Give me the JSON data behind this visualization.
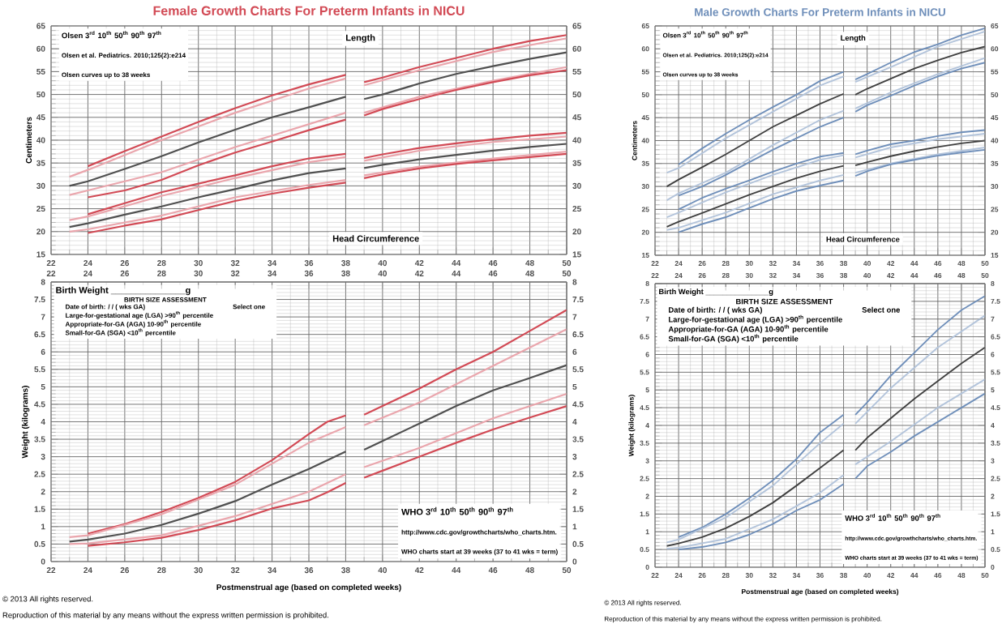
{
  "chart_data": [
    {
      "type": "line",
      "title": "Female Growth Charts For Preterm Infants in NICU",
      "ylabel": "Centimeters",
      "annotations": [
        "Olsen 3$^{rd}$ 10$^{th}$ 50$^{th}$ 90$^{th}$ 97$^{th}$",
        "Olsen et al. Pediatrics. 2010;125(2):e214",
        "Olsen curves up to 38 weeks",
        "Length",
        "Head Circumference"
      ],
      "xlim": [
        22,
        50
      ],
      "xticks": [
        22,
        24,
        26,
        28,
        30,
        32,
        34,
        36,
        38,
        40,
        42,
        44,
        46,
        48,
        50
      ],
      "ylim": [
        15,
        65
      ],
      "yticks": [
        15,
        20,
        25,
        30,
        35,
        40,
        45,
        50,
        55,
        60,
        65
      ],
      "y2lim": [
        15,
        65
      ],
      "y2ticks": [
        15,
        20,
        25,
        30,
        35,
        40,
        45,
        50,
        55,
        60,
        65
      ],
      "grid": true,
      "series": [
        {
          "color": "#d24a55",
          "x": [
            24,
            26,
            28,
            30,
            32,
            34,
            36,
            38,
            38.5,
            39,
            40,
            42,
            44,
            46,
            48,
            50
          ],
          "values": [
            34.3,
            37.6,
            40.8,
            44,
            47,
            49.8,
            52.2,
            54.3,
            null,
            52.7,
            53.7,
            56,
            58,
            60,
            61.7,
            63
          ]
        },
        {
          "color": "#eaa6ad",
          "x": [
            23,
            24,
            28,
            32,
            36,
            38,
            38.5,
            39,
            42,
            46,
            50
          ],
          "values": [
            32,
            33.5,
            40,
            46,
            51.3,
            53.5,
            null,
            52,
            55.3,
            59.3,
            62.3
          ]
        },
        {
          "color": "#505050",
          "x": [
            23,
            24,
            26,
            28,
            30,
            32,
            34,
            36,
            38,
            38.5,
            39,
            40,
            42,
            44,
            46,
            48,
            50
          ],
          "values": [
            30,
            31,
            33.7,
            36.5,
            39.5,
            42.3,
            45,
            47.2,
            49.5,
            null,
            49,
            50,
            52.4,
            54.5,
            56.2,
            57.8,
            59.2
          ]
        },
        {
          "color": "#eaa6ad",
          "x": [
            23,
            24,
            28,
            32,
            36,
            38,
            38.5,
            39,
            42,
            46,
            50
          ],
          "values": [
            28,
            29,
            33,
            38.5,
            43.5,
            46,
            null,
            46,
            49.5,
            53,
            56
          ]
        },
        {
          "color": "#d24a55",
          "x": [
            24,
            26,
            28,
            30,
            32,
            34,
            36,
            38,
            38.5,
            39,
            40,
            42,
            44,
            46,
            48,
            50
          ],
          "values": [
            27.5,
            29,
            31.3,
            34.5,
            37.3,
            39.7,
            42.2,
            44.5,
            null,
            45.4,
            46.8,
            49,
            51,
            52.7,
            54.2,
            55.3
          ]
        },
        {
          "color": "#d24a55",
          "x": [
            24,
            26,
            28,
            30,
            32,
            34,
            36,
            38,
            38.5,
            39,
            40,
            42,
            44,
            46,
            48,
            50
          ],
          "values": [
            23.8,
            26.2,
            28.6,
            30.5,
            32.3,
            34.3,
            36,
            37,
            null,
            36.1,
            36.9,
            38.3,
            39.3,
            40.2,
            41,
            41.6
          ]
        },
        {
          "color": "#eaa6ad",
          "x": [
            23,
            24,
            28,
            32,
            36,
            38,
            38.5,
            39,
            42,
            46,
            50
          ],
          "values": [
            22.5,
            23.3,
            27.8,
            31.7,
            35.2,
            36.3,
            null,
            35.5,
            37.7,
            39.6,
            40.8
          ]
        },
        {
          "color": "#505050",
          "x": [
            23,
            24,
            26,
            28,
            30,
            32,
            34,
            36,
            38,
            38.5,
            39,
            40,
            42,
            44,
            46,
            48,
            50
          ],
          "values": [
            21,
            21.8,
            23.7,
            25.5,
            27.5,
            29.3,
            31.2,
            32.8,
            33.8,
            null,
            33.9,
            34.6,
            35.8,
            36.8,
            37.7,
            38.5,
            39.2
          ]
        },
        {
          "color": "#eaa6ad",
          "x": [
            23,
            24,
            28,
            32,
            36,
            38,
            38.5,
            39,
            42,
            46,
            50
          ],
          "values": [
            20,
            20.5,
            23.5,
            27.5,
            30.2,
            31.3,
            null,
            32.3,
            34.2,
            36,
            37.5
          ]
        },
        {
          "color": "#d24a55",
          "x": [
            24,
            26,
            28,
            30,
            32,
            34,
            36,
            38,
            38.5,
            39,
            40,
            42,
            44,
            46,
            48,
            50
          ],
          "values": [
            19.7,
            21.3,
            22.7,
            24.7,
            26.7,
            28.3,
            29.6,
            30.7,
            null,
            31.7,
            32.5,
            33.8,
            34.8,
            35.6,
            36.3,
            37
          ]
        }
      ]
    },
    {
      "type": "line",
      "xlabel": "Postmenstrual age (based on completed weeks)",
      "ylabel": "Weight (kilograms)",
      "annotations": [
        "Birth Weight _______________g",
        "BIRTH SIZE ASSESSMENT",
        "Date of birth: / / ( wks GA)",
        "Select one",
        "Large-for-gestational age (LGA) >90$^{th}$ percentile",
        "Appropriate-for-GA (AGA) 10-90$^{th}$ percentile",
        "Small-for-GA (SGA) <10$^{th}$ percentile",
        "WHO 3$^{rd}$ 10$^{th}$ 50$^{th}$ 90$^{th}$ 97$^{th}$",
        "http://www.cdc.gov/growthcharts/who_charts.htm.",
        "WHO charts start at 39 weeks (37 to 41 wks = term)",
        "© 2013 All rights reserved.",
        "Reproduction of this material by any means without the express written permission is prohibited."
      ],
      "xlim": [
        22,
        50
      ],
      "xticks": [
        22,
        24,
        26,
        28,
        30,
        32,
        34,
        36,
        38,
        40,
        42,
        44,
        46,
        48,
        50
      ],
      "x2lim": [
        22,
        50
      ],
      "x2ticks": [
        22,
        24,
        26,
        28,
        30,
        32,
        34,
        36,
        38,
        40,
        42,
        44,
        46,
        48,
        50
      ],
      "ylim": [
        0,
        8
      ],
      "yticks": [
        0,
        0.5,
        1,
        1.5,
        2,
        2.5,
        3,
        3.5,
        4,
        4.5,
        5,
        5.5,
        6,
        6.5,
        7,
        7.5,
        8
      ],
      "y2lim": [
        0,
        8
      ],
      "y2ticks": [
        0,
        0.5,
        1,
        1.5,
        2,
        2.5,
        3,
        3.5,
        4,
        4.5,
        5,
        5.5,
        6,
        6.5,
        7,
        7.5,
        8
      ],
      "grid": true,
      "series": [
        {
          "color": "#d24a55",
          "x": [
            24,
            26,
            28,
            30,
            32,
            34,
            36,
            37,
            38,
            38.5,
            39,
            40,
            42,
            44,
            46,
            48,
            50
          ],
          "values": [
            0.8,
            1.07,
            1.42,
            1.82,
            2.28,
            2.9,
            3.65,
            4,
            4.18,
            null,
            4.2,
            4.45,
            4.95,
            5.5,
            6,
            6.6,
            7.2
          ]
        },
        {
          "color": "#eaa6ad",
          "x": [
            23,
            24,
            28,
            32,
            36,
            38,
            38.5,
            39,
            42,
            46,
            50
          ],
          "values": [
            0.7,
            0.75,
            1.35,
            2.2,
            3.4,
            3.85,
            null,
            3.9,
            4.55,
            5.6,
            6.65
          ]
        },
        {
          "color": "#505050",
          "x": [
            23,
            24,
            26,
            28,
            30,
            32,
            34,
            36,
            38,
            38.5,
            39,
            40,
            42,
            44,
            46,
            48,
            50
          ],
          "values": [
            0.57,
            0.63,
            0.8,
            1.05,
            1.37,
            1.73,
            2.2,
            2.65,
            3.15,
            null,
            3.2,
            3.45,
            3.95,
            4.45,
            4.9,
            5.25,
            5.62
          ]
        },
        {
          "color": "#eaa6ad",
          "x": [
            23,
            24,
            28,
            32,
            36,
            38,
            38.5,
            39,
            42,
            46,
            50
          ],
          "values": [
            0.5,
            0.52,
            0.75,
            1.3,
            2,
            2.5,
            null,
            2.7,
            3.25,
            4.1,
            4.8
          ]
        },
        {
          "color": "#d24a55",
          "x": [
            24,
            26,
            28,
            30,
            32,
            34,
            36,
            37,
            38,
            38.5,
            39,
            40,
            42,
            44,
            46,
            48,
            50
          ],
          "values": [
            0.45,
            0.55,
            0.68,
            0.9,
            1.18,
            1.52,
            1.75,
            1.98,
            2.25,
            null,
            2.4,
            2.6,
            3,
            3.4,
            3.78,
            4.12,
            4.45
          ]
        }
      ]
    },
    {
      "type": "line",
      "title": "Male Growth Charts For Preterm Infants in NICU",
      "ylabel": "Centimeters",
      "annotations": [
        "Olsen 3$^{rd}$ 10$^{th}$ 50$^{th}$ 90$^{th}$ 97$^{th}$",
        "Olsen et al. Pediatrics. 2010;125(2):e214",
        "Olsen curves up to 38 weeks",
        "Length",
        "Head Circumference"
      ],
      "xlim": [
        22,
        50
      ],
      "xticks": [
        22,
        24,
        26,
        28,
        30,
        32,
        34,
        36,
        38,
        40,
        42,
        44,
        46,
        48,
        50
      ],
      "ylim": [
        15,
        65
      ],
      "yticks": [
        15,
        20,
        25,
        30,
        35,
        40,
        45,
        50,
        55,
        60,
        65
      ],
      "y2lim": [
        15,
        65
      ],
      "y2ticks": [
        15,
        20,
        25,
        30,
        35,
        40,
        45,
        50,
        55,
        60,
        65
      ],
      "grid": true,
      "series": [
        {
          "color": "#6f8fba",
          "x": [
            24,
            26,
            28,
            30,
            32,
            34,
            36,
            38,
            38.5,
            39,
            40,
            42,
            44,
            46,
            48,
            50
          ],
          "values": [
            34.8,
            38.3,
            41.5,
            44.5,
            47.3,
            50,
            53,
            55,
            null,
            53.3,
            54.5,
            57,
            59.3,
            61,
            63,
            64.5
          ]
        },
        {
          "color": "#b3c4db",
          "x": [
            23,
            24,
            28,
            32,
            36,
            38,
            38.5,
            39,
            42,
            46,
            50
          ],
          "values": [
            33,
            34,
            40.5,
            46.3,
            52,
            54,
            null,
            52.8,
            56,
            60.5,
            63.8
          ]
        },
        {
          "color": "#404040",
          "x": [
            23,
            24,
            26,
            28,
            30,
            32,
            34,
            36,
            38,
            38.5,
            39,
            40,
            42,
            44,
            46,
            48,
            50
          ],
          "values": [
            30,
            31.5,
            34.2,
            37,
            40,
            43,
            45.5,
            48,
            50.2,
            null,
            50,
            51.3,
            53.5,
            55.7,
            57.5,
            59.2,
            60.5
          ]
        },
        {
          "color": "#b3c4db",
          "x": [
            23,
            24,
            28,
            32,
            36,
            38,
            38.5,
            39,
            42,
            46,
            50
          ],
          "values": [
            27,
            28.5,
            33,
            39,
            44.5,
            46.5,
            null,
            47,
            50.5,
            54.5,
            58
          ]
        },
        {
          "color": "#6f8fba",
          "x": [
            24,
            26,
            28,
            30,
            32,
            34,
            36,
            38,
            38.5,
            39,
            40,
            42,
            44,
            46,
            48,
            50
          ],
          "values": [
            28,
            30,
            32.5,
            35.3,
            38,
            40.5,
            43,
            45,
            null,
            46.3,
            47.7,
            49.8,
            52,
            54,
            55.7,
            57
          ]
        },
        {
          "color": "#6f8fba",
          "x": [
            24,
            26,
            28,
            30,
            32,
            34,
            36,
            38,
            38.5,
            39,
            40,
            42,
            44,
            46,
            48,
            50
          ],
          "values": [
            25,
            27.5,
            29.5,
            31.3,
            33.2,
            35,
            36.5,
            37.3,
            null,
            37,
            37.8,
            39.2,
            40,
            41,
            41.8,
            42.3
          ]
        },
        {
          "color": "#b3c4db",
          "x": [
            23,
            24,
            28,
            32,
            36,
            38,
            38.5,
            39,
            42,
            46,
            50
          ],
          "values": [
            23.3,
            24.3,
            28.7,
            32.5,
            35.8,
            36.8,
            null,
            36.3,
            38.5,
            40.3,
            41.5
          ]
        },
        {
          "color": "#404040",
          "x": [
            23,
            24,
            26,
            28,
            30,
            32,
            34,
            36,
            38,
            38.5,
            39,
            40,
            42,
            44,
            46,
            48,
            50
          ],
          "values": [
            21.2,
            22.3,
            24.2,
            26.2,
            28.2,
            30,
            31.8,
            33.3,
            34.5,
            null,
            34.6,
            35.3,
            36.6,
            37.7,
            38.6,
            39.4,
            40
          ]
        },
        {
          "color": "#b3c4db",
          "x": [
            23,
            24,
            28,
            32,
            36,
            38,
            38.5,
            39,
            42,
            46,
            50
          ],
          "values": [
            20.5,
            21,
            24.3,
            28.3,
            31.3,
            32.5,
            null,
            33,
            35,
            37,
            38.5
          ]
        },
        {
          "color": "#6f8fba",
          "x": [
            24,
            26,
            28,
            30,
            32,
            34,
            36,
            38,
            38.5,
            39,
            40,
            42,
            44,
            46,
            48,
            50
          ],
          "values": [
            20,
            21.8,
            23.3,
            25.3,
            27.3,
            29,
            30.2,
            31.3,
            null,
            32.3,
            33.3,
            34.8,
            35.8,
            36.7,
            37.4,
            38
          ]
        }
      ]
    },
    {
      "type": "line",
      "xlabel": "Postmenstrual age (based on completed weeks)",
      "ylabel": "Weight (kilograms)",
      "annotations": [
        "Birth Weight _______________g",
        "BIRTH SIZE ASSESSMENT",
        "Date of birth: / / ( wks GA)",
        "Select one",
        "Large-for-gestational age (LGA) >90$^{th}$ percentile",
        "Appropriate-for-GA (AGA) 10-90$^{th}$ percentile",
        "Small-for-GA (SGA) <10$^{th}$ percentile",
        "WHO 3$^{rd}$ 10$^{th}$ 50$^{th}$ 90$^{th}$ 97$^{th}$",
        "http://www.cdc.gov/growthcharts/who_charts.htm.",
        "WHO charts start at 39 weeks (37 to 41 wks = term)",
        "© 2013 All rights reserved.",
        "Reproduction of this material by any means without the express written permission is prohibited."
      ],
      "xlim": [
        22,
        50
      ],
      "xticks": [
        22,
        24,
        26,
        28,
        30,
        32,
        34,
        36,
        38,
        40,
        42,
        44,
        46,
        48,
        50
      ],
      "x2lim": [
        22,
        50
      ],
      "x2ticks": [
        22,
        24,
        26,
        28,
        30,
        32,
        34,
        36,
        38,
        40,
        42,
        44,
        46,
        48,
        50
      ],
      "ylim": [
        0,
        8
      ],
      "yticks": [
        0,
        0.5,
        1,
        1.5,
        2,
        2.5,
        3,
        3.5,
        4,
        4.5,
        5,
        5.5,
        6,
        6.5,
        7,
        7.5,
        8
      ],
      "y2lim": [
        0,
        8
      ],
      "y2ticks": [
        0,
        0.5,
        1,
        1.5,
        2,
        2.5,
        3,
        3.5,
        4,
        4.5,
        5,
        5.5,
        6,
        6.5,
        7,
        7.5,
        8
      ],
      "grid": true,
      "series": [
        {
          "color": "#6f8fba",
          "x": [
            24,
            26,
            28,
            30,
            32,
            34,
            36,
            38,
            38.5,
            39,
            40,
            42,
            44,
            46,
            48,
            50
          ],
          "values": [
            0.85,
            1.12,
            1.5,
            1.95,
            2.45,
            3.05,
            3.8,
            4.3,
            null,
            4.3,
            4.65,
            5.4,
            6.05,
            6.7,
            7.25,
            7.65
          ]
        },
        {
          "color": "#b3c4db",
          "x": [
            23,
            24,
            28,
            32,
            36,
            38,
            38.5,
            39,
            42,
            46,
            50
          ],
          "values": [
            0.7,
            0.78,
            1.4,
            2.3,
            3.5,
            4.05,
            null,
            4.05,
            5.05,
            6.2,
            7.1
          ]
        },
        {
          "color": "#404040",
          "x": [
            23,
            24,
            26,
            28,
            30,
            32,
            34,
            36,
            38,
            38.5,
            39,
            40,
            42,
            44,
            46,
            48,
            50
          ],
          "values": [
            0.6,
            0.67,
            0.85,
            1.1,
            1.43,
            1.82,
            2.3,
            2.8,
            3.3,
            null,
            3.3,
            3.65,
            4.2,
            4.75,
            5.25,
            5.75,
            6.2
          ]
        },
        {
          "color": "#b3c4db",
          "x": [
            23,
            24,
            28,
            32,
            36,
            38,
            38.5,
            39,
            42,
            46,
            50
          ],
          "values": [
            0.52,
            0.55,
            0.8,
            1.35,
            2.1,
            2.6,
            null,
            2.9,
            3.55,
            4.5,
            5.3
          ]
        },
        {
          "color": "#6f8fba",
          "x": [
            24,
            26,
            28,
            30,
            32,
            34,
            36,
            38,
            38.5,
            39,
            40,
            42,
            44,
            46,
            48,
            50
          ],
          "values": [
            0.5,
            0.57,
            0.7,
            0.92,
            1.22,
            1.6,
            1.9,
            2.35,
            null,
            2.5,
            2.85,
            3.25,
            3.7,
            4.1,
            4.5,
            4.9
          ]
        }
      ]
    }
  ]
}
